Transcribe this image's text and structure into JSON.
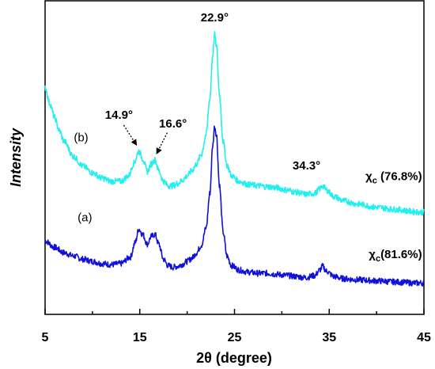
{
  "chart_data": {
    "type": "line",
    "title": "",
    "xlabel": "2θ (degree)",
    "ylabel": "Intensity",
    "xlim": [
      5,
      45
    ],
    "x_ticks": [
      "5",
      "15",
      "25",
      "35",
      "45"
    ],
    "y_ticks_shown": false,
    "grid": false,
    "series": [
      {
        "name": "",
        "curve_label": "(a)",
        "crystallinity_label": "χc(81.6%)",
        "color": "#1010d8",
        "points": [
          [
            5.0,
            0.34
          ],
          [
            6.0,
            0.31
          ],
          [
            7.0,
            0.285
          ],
          [
            8.0,
            0.27
          ],
          [
            9.0,
            0.255
          ],
          [
            10.0,
            0.245
          ],
          [
            11.0,
            0.235
          ],
          [
            12.0,
            0.23
          ],
          [
            13.0,
            0.235
          ],
          [
            14.0,
            0.265
          ],
          [
            14.5,
            0.33
          ],
          [
            14.9,
            0.395
          ],
          [
            15.3,
            0.37
          ],
          [
            15.8,
            0.325
          ],
          [
            16.2,
            0.36
          ],
          [
            16.6,
            0.37
          ],
          [
            17.0,
            0.325
          ],
          [
            17.5,
            0.255
          ],
          [
            18.0,
            0.225
          ],
          [
            18.5,
            0.218
          ],
          [
            19.0,
            0.222
          ],
          [
            19.5,
            0.232
          ],
          [
            20.0,
            0.245
          ],
          [
            20.5,
            0.26
          ],
          [
            21.0,
            0.285
          ],
          [
            21.5,
            0.32
          ],
          [
            22.0,
            0.4
          ],
          [
            22.4,
            0.56
          ],
          [
            22.7,
            0.78
          ],
          [
            22.9,
            0.87
          ],
          [
            23.1,
            0.83
          ],
          [
            23.4,
            0.6
          ],
          [
            23.8,
            0.38
          ],
          [
            24.2,
            0.27
          ],
          [
            24.7,
            0.225
          ],
          [
            25.5,
            0.205
          ],
          [
            26.5,
            0.195
          ],
          [
            27.5,
            0.19
          ],
          [
            28.5,
            0.19
          ],
          [
            29.5,
            0.185
          ],
          [
            30.5,
            0.18
          ],
          [
            31.5,
            0.175
          ],
          [
            32.5,
            0.17
          ],
          [
            33.5,
            0.18
          ],
          [
            34.0,
            0.205
          ],
          [
            34.3,
            0.222
          ],
          [
            34.7,
            0.2
          ],
          [
            35.5,
            0.175
          ],
          [
            36.5,
            0.165
          ],
          [
            38.0,
            0.16
          ],
          [
            40.0,
            0.155
          ],
          [
            42.0,
            0.15
          ],
          [
            44.0,
            0.145
          ],
          [
            45.0,
            0.145
          ]
        ]
      },
      {
        "name": "",
        "curve_label": "(b)",
        "crystallinity_label": "χc (76.8%)",
        "color": "#22f0ee",
        "points": [
          [
            5.0,
            1.05
          ],
          [
            5.5,
            0.975
          ],
          [
            6.0,
            0.91
          ],
          [
            6.5,
            0.85
          ],
          [
            7.0,
            0.8
          ],
          [
            8.0,
            0.73
          ],
          [
            9.0,
            0.685
          ],
          [
            10.0,
            0.655
          ],
          [
            11.0,
            0.63
          ],
          [
            12.0,
            0.615
          ],
          [
            13.0,
            0.615
          ],
          [
            13.8,
            0.64
          ],
          [
            14.4,
            0.7
          ],
          [
            14.9,
            0.755
          ],
          [
            15.3,
            0.72
          ],
          [
            15.8,
            0.66
          ],
          [
            16.2,
            0.695
          ],
          [
            16.6,
            0.715
          ],
          [
            17.0,
            0.665
          ],
          [
            17.5,
            0.615
          ],
          [
            18.0,
            0.595
          ],
          [
            18.5,
            0.595
          ],
          [
            19.0,
            0.605
          ],
          [
            19.5,
            0.62
          ],
          [
            20.0,
            0.64
          ],
          [
            20.5,
            0.665
          ],
          [
            21.0,
            0.695
          ],
          [
            21.5,
            0.74
          ],
          [
            22.0,
            0.83
          ],
          [
            22.4,
            1.0
          ],
          [
            22.7,
            1.2
          ],
          [
            22.9,
            1.295
          ],
          [
            23.1,
            1.24
          ],
          [
            23.4,
            1.02
          ],
          [
            23.8,
            0.8
          ],
          [
            24.2,
            0.69
          ],
          [
            24.7,
            0.64
          ],
          [
            25.5,
            0.615
          ],
          [
            26.5,
            0.6
          ],
          [
            27.5,
            0.595
          ],
          [
            28.5,
            0.59
          ],
          [
            29.5,
            0.585
          ],
          [
            30.5,
            0.575
          ],
          [
            31.5,
            0.565
          ],
          [
            32.5,
            0.555
          ],
          [
            33.5,
            0.56
          ],
          [
            34.0,
            0.58
          ],
          [
            34.3,
            0.595
          ],
          [
            34.7,
            0.575
          ],
          [
            35.5,
            0.545
          ],
          [
            36.5,
            0.525
          ],
          [
            38.0,
            0.51
          ],
          [
            40.0,
            0.495
          ],
          [
            42.0,
            0.485
          ],
          [
            44.0,
            0.475
          ],
          [
            45.0,
            0.472
          ]
        ]
      }
    ],
    "annotations": [
      {
        "text": "22.9°",
        "x": 22.9,
        "arrow": false
      },
      {
        "text": "14.9°",
        "x": 14.9,
        "arrow": true
      },
      {
        "text": "16.6°",
        "x": 16.6,
        "arrow": true
      },
      {
        "text": "34.3°",
        "x": 34.3,
        "arrow": false
      }
    ]
  }
}
